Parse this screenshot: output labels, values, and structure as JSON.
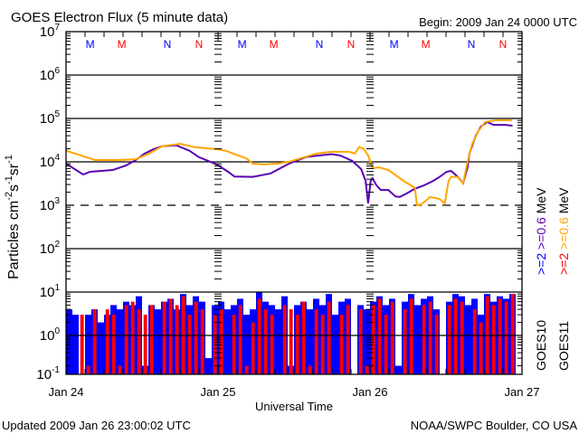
{
  "header": {
    "title": "GOES Electron Flux (5 minute data)",
    "begin": "Begin: 2009 Jan 24 0000 UTC"
  },
  "footer": {
    "updated": "Updated 2009 Jan 26 23:00:02 UTC",
    "credit": "NOAA/SWPC Boulder, CO USA"
  },
  "legend": {
    "col1": [
      {
        "text": ">=2 ",
        "color": "#0000ff"
      },
      {
        "text": ">=0.6 ",
        "color": "#5a00b4"
      },
      {
        "text": "MeV",
        "color": "#000000"
      }
    ],
    "col2": [
      {
        "text": ">=2 ",
        "color": "#ff0000"
      },
      {
        "text": ">=0.6 ",
        "color": "#ffa500"
      },
      {
        "text": "MeV",
        "color": "#000000"
      }
    ],
    "sat1": "GOES10",
    "sat2": "GOES11"
  },
  "chart_data": {
    "type": "line",
    "title": "GOES Electron Flux (5 minute data)",
    "xlabel": "Universal Time",
    "ylabel": {
      "base": "Particles cm",
      "parts": [
        {
          "b": "",
          "sup": "-2"
        },
        {
          "b": "s",
          "sup": "-1"
        },
        {
          "b": "sr",
          "sup": "-1"
        }
      ]
    },
    "yscale": "log",
    "ylim_log10": [
      -1,
      7
    ],
    "ytick_exponents": [
      7,
      6,
      5,
      4,
      3,
      2,
      1,
      0,
      -1
    ],
    "ytick_base": "10",
    "dashed_gridline_exponent": 3,
    "xlim_hours": [
      0,
      72
    ],
    "xticks": [
      {
        "hour": 0,
        "label": "Jan 24"
      },
      {
        "hour": 24,
        "label": "Jan 25"
      },
      {
        "hour": 48,
        "label": "Jan 26"
      },
      {
        "hour": 72,
        "label": "Jan 27"
      }
    ],
    "markers": [
      {
        "label": "M",
        "hour": 3.8,
        "color": "#0000ff"
      },
      {
        "label": "M",
        "hour": 8.8,
        "color": "#ff0000"
      },
      {
        "label": "N",
        "hour": 16,
        "color": "#0000ff"
      },
      {
        "label": "N",
        "hour": 21,
        "color": "#ff0000"
      },
      {
        "label": "M",
        "hour": 27.8,
        "color": "#0000ff"
      },
      {
        "label": "M",
        "hour": 32.8,
        "color": "#ff0000"
      },
      {
        "label": "N",
        "hour": 40,
        "color": "#0000ff"
      },
      {
        "label": "N",
        "hour": 45,
        "color": "#ff0000"
      },
      {
        "label": "M",
        "hour": 51.8,
        "color": "#0000ff"
      },
      {
        "label": "M",
        "hour": 56.8,
        "color": "#ff0000"
      },
      {
        "label": "N",
        "hour": 64,
        "color": "#0000ff"
      },
      {
        "label": "N",
        "hour": 69,
        "color": "#ff0000"
      }
    ],
    "series": [
      {
        "name": "GOES10 >=0.6 MeV",
        "color": "#5a00b4",
        "kind": "line",
        "points": [
          [
            0,
            9100
          ],
          [
            2.7,
            5100
          ],
          [
            3.8,
            5900
          ],
          [
            7.4,
            6500
          ],
          [
            9.5,
            8300
          ],
          [
            11,
            11000
          ],
          [
            12.4,
            15500
          ],
          [
            13.8,
            19500
          ],
          [
            15.2,
            23000
          ],
          [
            17.4,
            24000
          ],
          [
            19.5,
            18000
          ],
          [
            20.9,
            13000
          ],
          [
            23.8,
            8700
          ],
          [
            25.6,
            5900
          ],
          [
            26.6,
            4600
          ],
          [
            29.5,
            4500
          ],
          [
            32.3,
            5400
          ],
          [
            35.2,
            9100
          ],
          [
            38,
            13000
          ],
          [
            41.9,
            15000
          ],
          [
            43.3,
            14000
          ],
          [
            45.2,
            10500
          ],
          [
            46.6,
            6800
          ],
          [
            47.3,
            3650
          ],
          [
            47.7,
            1100
          ],
          [
            48.1,
            3650
          ],
          [
            48.4,
            4200
          ],
          [
            49,
            2900
          ],
          [
            49.7,
            2250
          ],
          [
            50.9,
            2250
          ],
          [
            52,
            1600
          ],
          [
            52.7,
            1550
          ],
          [
            53.7,
            1850
          ],
          [
            55.1,
            2400
          ],
          [
            56.6,
            2900
          ],
          [
            58,
            3650
          ],
          [
            59,
            4500
          ],
          [
            60.1,
            5900
          ],
          [
            60.8,
            6200
          ],
          [
            61.8,
            4600
          ],
          [
            62.7,
            3200
          ],
          [
            63.4,
            7500
          ],
          [
            63.7,
            15500
          ],
          [
            64.7,
            40000
          ],
          [
            65.5,
            65000
          ],
          [
            66.5,
            83000
          ],
          [
            67.5,
            71000
          ],
          [
            69.4,
            71000
          ],
          [
            70.5,
            68000
          ]
        ]
      },
      {
        "name": "GOES11 >=0.6 MeV",
        "color": "#ffa500",
        "kind": "line",
        "points": [
          [
            0,
            18000
          ],
          [
            4.6,
            11000
          ],
          [
            8.1,
            11000
          ],
          [
            11,
            11500
          ],
          [
            13.1,
            15500
          ],
          [
            15.2,
            23000
          ],
          [
            18.1,
            26000
          ],
          [
            20.2,
            22000
          ],
          [
            23.8,
            19500
          ],
          [
            25.2,
            18000
          ],
          [
            26.6,
            15000
          ],
          [
            28.5,
            12000
          ],
          [
            29.5,
            9100
          ],
          [
            31.3,
            8700
          ],
          [
            33.3,
            9100
          ],
          [
            35.2,
            10000
          ],
          [
            37,
            12000
          ],
          [
            39.5,
            15500
          ],
          [
            41.9,
            17000
          ],
          [
            44.7,
            17000
          ],
          [
            45.6,
            15500
          ],
          [
            46.3,
            22000
          ],
          [
            47,
            20000
          ],
          [
            47.7,
            14000
          ],
          [
            48.4,
            7100
          ],
          [
            49.4,
            7500
          ],
          [
            50.9,
            6500
          ],
          [
            53.3,
            3650
          ],
          [
            55.1,
            2500
          ],
          [
            55.4,
            1000
          ],
          [
            56.1,
            1050
          ],
          [
            57.5,
            1550
          ],
          [
            59,
            1400
          ],
          [
            59.8,
            1100
          ],
          [
            60.4,
            3650
          ],
          [
            60.8,
            4500
          ],
          [
            61.8,
            4500
          ],
          [
            62.7,
            3200
          ],
          [
            63.4,
            10000
          ],
          [
            64.1,
            25000
          ],
          [
            65.1,
            51000
          ],
          [
            66.2,
            83000
          ],
          [
            67.9,
            91000
          ],
          [
            70.4,
            91000
          ]
        ]
      },
      {
        "name": "GOES10 >=2 MeV",
        "color": "#0000ff",
        "kind": "bar",
        "start_hour": 0,
        "step_hours": 1,
        "values": [
          4,
          3,
          0.1,
          3,
          4,
          2,
          3,
          5,
          4,
          6,
          5,
          8,
          0.2,
          5,
          4,
          6,
          7,
          4,
          9,
          5,
          8,
          6,
          0.3,
          5,
          6,
          4,
          5,
          7,
          3,
          4,
          10,
          6,
          5,
          4,
          8,
          0.2,
          5,
          6,
          4,
          7,
          5,
          9,
          3,
          6,
          7,
          0.1,
          5,
          4,
          6,
          8,
          5,
          7,
          0.2,
          6,
          9,
          5,
          7,
          8,
          4,
          0.1,
          6,
          9,
          8,
          5,
          7,
          3,
          9,
          6,
          8,
          7,
          9
        ]
      },
      {
        "name": "GOES11 >=2 MeV",
        "color": "#ff0000",
        "kind": "bar",
        "start_hour": 0,
        "step_hours": 1,
        "values": [
          0.1,
          0.1,
          3,
          0.2,
          4,
          0.1,
          4,
          3,
          0.2,
          5,
          6,
          4,
          3,
          5,
          0.1,
          6,
          7,
          5,
          8,
          3,
          6,
          4,
          0.1,
          3,
          4,
          0.1,
          3,
          5,
          0.2,
          2,
          7,
          4,
          3,
          0.1,
          5,
          4,
          3,
          6,
          0.2,
          4,
          3,
          6,
          0.1,
          3,
          5,
          0.1,
          4,
          0.2,
          5,
          7,
          3,
          6,
          0.1,
          4,
          7,
          0.1,
          5,
          6,
          3,
          0.1,
          5,
          7,
          6,
          0.1,
          4,
          2,
          8,
          5,
          7,
          6,
          9
        ]
      }
    ]
  }
}
